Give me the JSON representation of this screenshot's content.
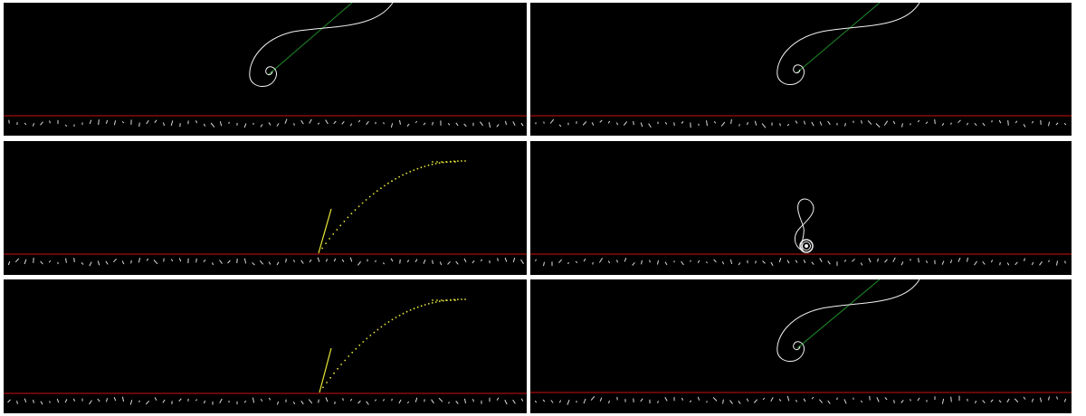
{
  "colors": {
    "background": "#000000",
    "separator": "#ffffff",
    "ground_line": "#cc1111",
    "spiral_curve": "#f2f2f2",
    "guide_line": "#1f8f2a",
    "trajectory": "#e8e83a",
    "ground_marks": "#dddddd"
  },
  "panels": [
    {
      "kind": "spiral"
    },
    {
      "kind": "spiral"
    },
    {
      "kind": "trajectory"
    },
    {
      "kind": "coil"
    },
    {
      "kind": "trajectory"
    },
    {
      "kind": "spiral"
    }
  ]
}
